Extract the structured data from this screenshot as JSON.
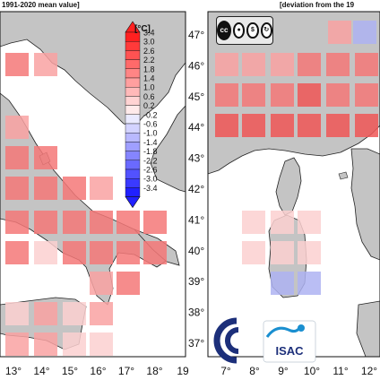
{
  "titles": {
    "left": "1991-2020 mean value]",
    "right": "[deviation from the 19"
  },
  "colorbar": {
    "unit": "[°C]",
    "labels": [
      "3.4",
      "3.0",
      "2.6",
      "2.2",
      "1.8",
      "1.4",
      "1.0",
      "0.6",
      "0.2",
      "-0.2",
      "-0.6",
      "-1.0",
      "-1.4",
      "-1.8",
      "-2.2",
      "-2.6",
      "-3.0",
      "-3.4"
    ],
    "colors": [
      "#ff2020",
      "#ff3a3a",
      "#ff5252",
      "#ff6a6a",
      "#ff8585",
      "#ff9f9f",
      "#ffb9b9",
      "#ffd3d3",
      "#ffeaea",
      "#eaeaff",
      "#d3d3ff",
      "#b9b9ff",
      "#9f9fff",
      "#8585ff",
      "#6a6aff",
      "#5252ff",
      "#3a3aff",
      "#2020ff"
    ]
  },
  "left_panel": {
    "x_ticks": [
      "13°",
      "14°",
      "15°",
      "16°",
      "17°",
      "18°",
      "19"
    ]
  },
  "right_panel": {
    "x_ticks": [
      "7°",
      "8°",
      "9°",
      "10°",
      "11°",
      "12°"
    ]
  },
  "lat_labels": [
    "47°",
    "46°",
    "45°",
    "44°",
    "43°",
    "42°",
    "41°",
    "40°",
    "39°",
    "38°",
    "37°"
  ],
  "logo": {
    "text": "ISAC"
  },
  "colors": {
    "sea": "#ffffff",
    "land": "#c4c4c4",
    "warm_strong": "#f26a6a",
    "cool": "#aeb3f2"
  }
}
